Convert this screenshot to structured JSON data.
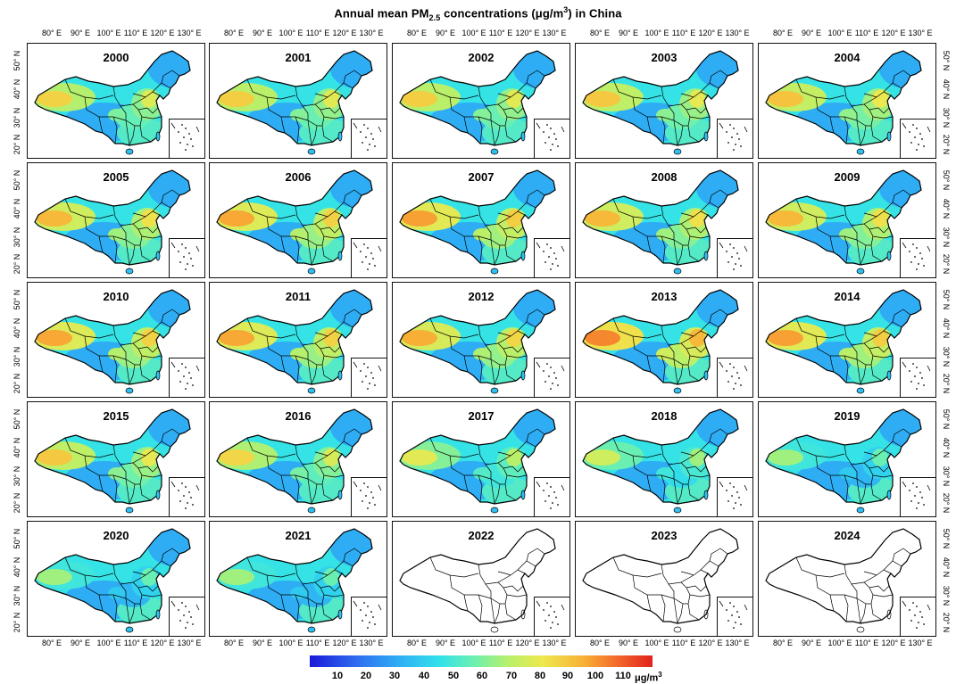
{
  "title": {
    "prefix": "Annual mean PM",
    "sub": "2.5",
    "middle": " concentrations (μg/m",
    "sup": "3",
    "suffix": ") in China"
  },
  "lon_ticks": [
    "80° E",
    "90° E",
    "100° E",
    "110° E",
    "120° E",
    "130° E"
  ],
  "lat_ticks": [
    "50° N",
    "40° N",
    "30° N",
    "20° N"
  ],
  "years": [
    {
      "label": "2000",
      "data": true,
      "level": 0.45
    },
    {
      "label": "2001",
      "data": true,
      "level": 0.46
    },
    {
      "label": "2002",
      "data": true,
      "level": 0.46
    },
    {
      "label": "2003",
      "data": true,
      "level": 0.47
    },
    {
      "label": "2004",
      "data": true,
      "level": 0.48
    },
    {
      "label": "2005",
      "data": true,
      "level": 0.5
    },
    {
      "label": "2006",
      "data": true,
      "level": 0.53
    },
    {
      "label": "2007",
      "data": true,
      "level": 0.54
    },
    {
      "label": "2008",
      "data": true,
      "level": 0.5
    },
    {
      "label": "2009",
      "data": true,
      "level": 0.5
    },
    {
      "label": "2010",
      "data": true,
      "level": 0.53
    },
    {
      "label": "2011",
      "data": true,
      "level": 0.53
    },
    {
      "label": "2012",
      "data": true,
      "level": 0.52
    },
    {
      "label": "2013",
      "data": true,
      "level": 0.58
    },
    {
      "label": "2014",
      "data": true,
      "level": 0.54
    },
    {
      "label": "2015",
      "data": true,
      "level": 0.47
    },
    {
      "label": "2016",
      "data": true,
      "level": 0.44
    },
    {
      "label": "2017",
      "data": true,
      "level": 0.38
    },
    {
      "label": "2018",
      "data": true,
      "level": 0.34
    },
    {
      "label": "2019",
      "data": true,
      "level": 0.26
    },
    {
      "label": "2020",
      "data": true,
      "level": 0.26
    },
    {
      "label": "2021",
      "data": true,
      "level": 0.26
    },
    {
      "label": "2022",
      "data": false,
      "level": 0
    },
    {
      "label": "2023",
      "data": false,
      "level": 0
    },
    {
      "label": "2024",
      "data": false,
      "level": 0
    }
  ],
  "colorbar": {
    "labels": [
      "10",
      "20",
      "30",
      "40",
      "50",
      "60",
      "70",
      "80",
      "90",
      "100",
      "110"
    ],
    "unit_prefix": "μg/m",
    "unit_sup": "3",
    "colors": [
      "#1a1ad8",
      "#2f6ff0",
      "#2eaef5",
      "#32e2ea",
      "#6cf0b0",
      "#b8f06a",
      "#eee84e",
      "#f8b036",
      "#f3662a",
      "#e0221c"
    ]
  }
}
